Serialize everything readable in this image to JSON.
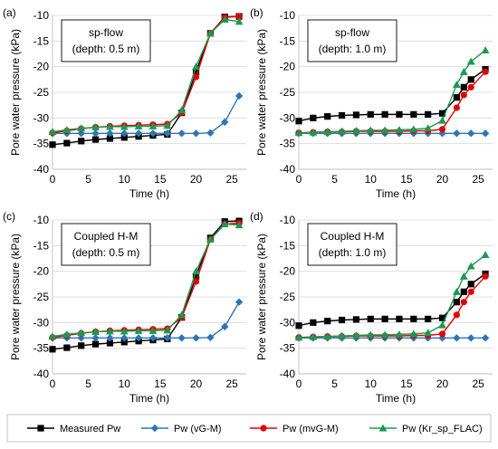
{
  "legend": [
    {
      "label": "Measured Pw",
      "color": "#000000",
      "marker": "square"
    },
    {
      "label": "Pw (vG-M)",
      "color": "#2e75b6",
      "marker": "diamond"
    },
    {
      "label": "Pw (mvG-M)",
      "color": "#e00000",
      "marker": "circle"
    },
    {
      "label": "Pw (Kr_sp_FLAC)",
      "color": "#1a9a50",
      "marker": "triangle"
    }
  ],
  "chart_data": [
    {
      "type": "line",
      "panel_label": "(a)",
      "box_title": "sp-flow",
      "box_subtitle": "(depth: 0.5 m)",
      "xlabel": "Time (h)",
      "ylabel": "Pore water pressure (kPa)",
      "xlim": [
        0,
        27
      ],
      "ylim": [
        -40,
        -10
      ],
      "xticks": [
        0,
        5,
        10,
        15,
        20,
        25
      ],
      "yticks": [
        -40,
        -35,
        -30,
        -25,
        -20,
        -15,
        -10
      ],
      "series": [
        {
          "name": "Measured Pw",
          "x": [
            0,
            2,
            4,
            6,
            8,
            10,
            12,
            14,
            16,
            18,
            20,
            22,
            24,
            26
          ],
          "y": [
            -35.2,
            -34.9,
            -34.5,
            -34.2,
            -34.0,
            -33.8,
            -33.6,
            -33.4,
            -33.2,
            -29.0,
            -21.0,
            -13.5,
            -10.3,
            -10.2
          ]
        },
        {
          "name": "Pw (vG-M)",
          "x": [
            0,
            2,
            4,
            6,
            8,
            10,
            12,
            14,
            16,
            18,
            20,
            22,
            24,
            26
          ],
          "y": [
            -33.0,
            -33.0,
            -33.0,
            -33.0,
            -33.0,
            -33.0,
            -33.0,
            -33.0,
            -33.0,
            -33.0,
            -33.0,
            -32.9,
            -30.8,
            -25.7
          ]
        },
        {
          "name": "Pw (mvG-M)",
          "x": [
            0,
            2,
            4,
            6,
            8,
            10,
            12,
            14,
            16,
            18,
            20,
            22,
            24,
            26
          ],
          "y": [
            -32.9,
            -32.5,
            -32.1,
            -31.8,
            -31.6,
            -31.5,
            -31.4,
            -31.3,
            -31.2,
            -29.0,
            -22.0,
            -13.5,
            -10.4,
            -10.2
          ]
        },
        {
          "name": "Pw (Kr_sp_FLAC)",
          "x": [
            0,
            2,
            4,
            6,
            8,
            10,
            12,
            14,
            16,
            18,
            20,
            22,
            24,
            26
          ],
          "y": [
            -32.7,
            -32.3,
            -32.0,
            -31.8,
            -31.7,
            -31.7,
            -31.6,
            -31.6,
            -31.5,
            -28.5,
            -20.0,
            -13.5,
            -10.8,
            -11.2
          ]
        }
      ]
    },
    {
      "type": "line",
      "panel_label": "(b)",
      "box_title": "sp-flow",
      "box_subtitle": "(depth: 1.0 m)",
      "xlabel": "Time (h)",
      "ylabel": "Pore water pressure (kPa)",
      "xlim": [
        0,
        27
      ],
      "ylim": [
        -40,
        -10
      ],
      "xticks": [
        0,
        5,
        10,
        15,
        20,
        25
      ],
      "yticks": [
        -40,
        -35,
        -30,
        -25,
        -20,
        -15,
        -10
      ],
      "series": [
        {
          "name": "Measured Pw",
          "x": [
            0,
            2,
            4,
            6,
            8,
            10,
            12,
            14,
            16,
            18,
            20,
            22,
            23,
            24,
            26
          ],
          "y": [
            -30.6,
            -30.0,
            -29.7,
            -29.5,
            -29.4,
            -29.3,
            -29.3,
            -29.3,
            -29.3,
            -29.3,
            -29.1,
            -26.0,
            -24.0,
            -22.5,
            -20.5
          ]
        },
        {
          "name": "Pw (vG-M)",
          "x": [
            0,
            2,
            4,
            6,
            8,
            10,
            12,
            14,
            16,
            18,
            20,
            22,
            24,
            26
          ],
          "y": [
            -33.0,
            -33.0,
            -33.0,
            -33.0,
            -33.0,
            -33.0,
            -33.0,
            -33.0,
            -33.0,
            -33.0,
            -33.0,
            -33.0,
            -33.0,
            -33.0
          ]
        },
        {
          "name": "Pw (mvG-M)",
          "x": [
            0,
            2,
            4,
            6,
            8,
            10,
            12,
            14,
            16,
            18,
            20,
            22,
            23,
            24,
            26
          ],
          "y": [
            -32.9,
            -32.8,
            -32.7,
            -32.7,
            -32.6,
            -32.6,
            -32.6,
            -32.6,
            -32.5,
            -32.5,
            -32.2,
            -28.0,
            -25.5,
            -24.0,
            -21.0
          ]
        },
        {
          "name": "Pw (Kr_sp_FLAC)",
          "x": [
            0,
            2,
            4,
            6,
            8,
            10,
            12,
            14,
            16,
            18,
            20,
            22,
            23,
            24,
            26
          ],
          "y": [
            -32.9,
            -32.8,
            -32.7,
            -32.6,
            -32.5,
            -32.4,
            -32.4,
            -32.3,
            -32.2,
            -32.0,
            -30.5,
            -23.5,
            -21.0,
            -19.0,
            -16.8
          ]
        }
      ]
    },
    {
      "type": "line",
      "panel_label": "(c)",
      "box_title": "Coupled H-M",
      "box_subtitle": "(depth: 0.5 m)",
      "xlabel": "Time (h)",
      "ylabel": "Pore water pressure (kPa)",
      "xlim": [
        0,
        27
      ],
      "ylim": [
        -40,
        -10
      ],
      "xticks": [
        0,
        5,
        10,
        15,
        20,
        25
      ],
      "yticks": [
        -40,
        -35,
        -30,
        -25,
        -20,
        -15,
        -10
      ],
      "series": [
        {
          "name": "Measured Pw",
          "x": [
            0,
            2,
            4,
            6,
            8,
            10,
            12,
            14,
            16,
            18,
            20,
            22,
            24,
            26
          ],
          "y": [
            -35.2,
            -34.9,
            -34.5,
            -34.2,
            -34.0,
            -33.8,
            -33.6,
            -33.4,
            -33.2,
            -29.0,
            -21.0,
            -13.5,
            -10.3,
            -10.2
          ]
        },
        {
          "name": "Pw (vG-M)",
          "x": [
            0,
            2,
            4,
            6,
            8,
            10,
            12,
            14,
            16,
            18,
            20,
            22,
            24,
            26
          ],
          "y": [
            -33.0,
            -33.0,
            -33.0,
            -33.0,
            -33.0,
            -33.0,
            -33.0,
            -33.0,
            -33.0,
            -33.0,
            -33.0,
            -32.9,
            -30.8,
            -26.0
          ]
        },
        {
          "name": "Pw (mvG-M)",
          "x": [
            0,
            2,
            4,
            6,
            8,
            10,
            12,
            14,
            16,
            18,
            20,
            22,
            24,
            26
          ],
          "y": [
            -32.9,
            -32.5,
            -32.1,
            -31.8,
            -31.6,
            -31.5,
            -31.4,
            -31.3,
            -31.2,
            -29.0,
            -22.0,
            -13.8,
            -10.8,
            -10.6
          ]
        },
        {
          "name": "Pw (Kr_sp_FLAC)",
          "x": [
            0,
            2,
            4,
            6,
            8,
            10,
            12,
            14,
            16,
            18,
            20,
            22,
            24,
            26
          ],
          "y": [
            -32.7,
            -32.3,
            -32.0,
            -31.8,
            -31.7,
            -31.7,
            -31.6,
            -31.6,
            -31.5,
            -28.5,
            -20.0,
            -13.8,
            -10.8,
            -11.0
          ]
        }
      ]
    },
    {
      "type": "line",
      "panel_label": "(d)",
      "box_title": "Coupled H-M",
      "box_subtitle": "(depth: 1.0 m)",
      "xlabel": "Time (h)",
      "ylabel": "Pore water pressure (kPa)",
      "xlim": [
        0,
        27
      ],
      "ylim": [
        -40,
        -10
      ],
      "xticks": [
        0,
        5,
        10,
        15,
        20,
        25
      ],
      "yticks": [
        -40,
        -35,
        -30,
        -25,
        -20,
        -15,
        -10
      ],
      "series": [
        {
          "name": "Measured Pw",
          "x": [
            0,
            2,
            4,
            6,
            8,
            10,
            12,
            14,
            16,
            18,
            20,
            22,
            23,
            24,
            26
          ],
          "y": [
            -30.6,
            -30.0,
            -29.7,
            -29.5,
            -29.4,
            -29.3,
            -29.3,
            -29.3,
            -29.3,
            -29.3,
            -29.1,
            -26.0,
            -24.0,
            -22.5,
            -20.5
          ]
        },
        {
          "name": "Pw (vG-M)",
          "x": [
            0,
            2,
            4,
            6,
            8,
            10,
            12,
            14,
            16,
            18,
            20,
            22,
            24,
            26
          ],
          "y": [
            -33.0,
            -33.0,
            -33.0,
            -33.0,
            -33.0,
            -33.0,
            -33.0,
            -33.0,
            -33.0,
            -33.0,
            -33.0,
            -33.0,
            -33.0,
            -33.0
          ]
        },
        {
          "name": "Pw (mvG-M)",
          "x": [
            0,
            2,
            4,
            6,
            8,
            10,
            12,
            14,
            16,
            18,
            20,
            22,
            23,
            24,
            26
          ],
          "y": [
            -32.9,
            -32.8,
            -32.7,
            -32.7,
            -32.6,
            -32.6,
            -32.6,
            -32.6,
            -32.5,
            -32.5,
            -32.2,
            -28.5,
            -26.0,
            -24.0,
            -21.0
          ]
        },
        {
          "name": "Pw (Kr_sp_FLAC)",
          "x": [
            0,
            2,
            4,
            6,
            8,
            10,
            12,
            14,
            16,
            18,
            20,
            22,
            23,
            24,
            26
          ],
          "y": [
            -32.9,
            -32.8,
            -32.7,
            -32.6,
            -32.5,
            -32.4,
            -32.4,
            -32.3,
            -32.2,
            -32.0,
            -30.5,
            -24.0,
            -21.0,
            -19.0,
            -16.8
          ]
        }
      ]
    }
  ]
}
